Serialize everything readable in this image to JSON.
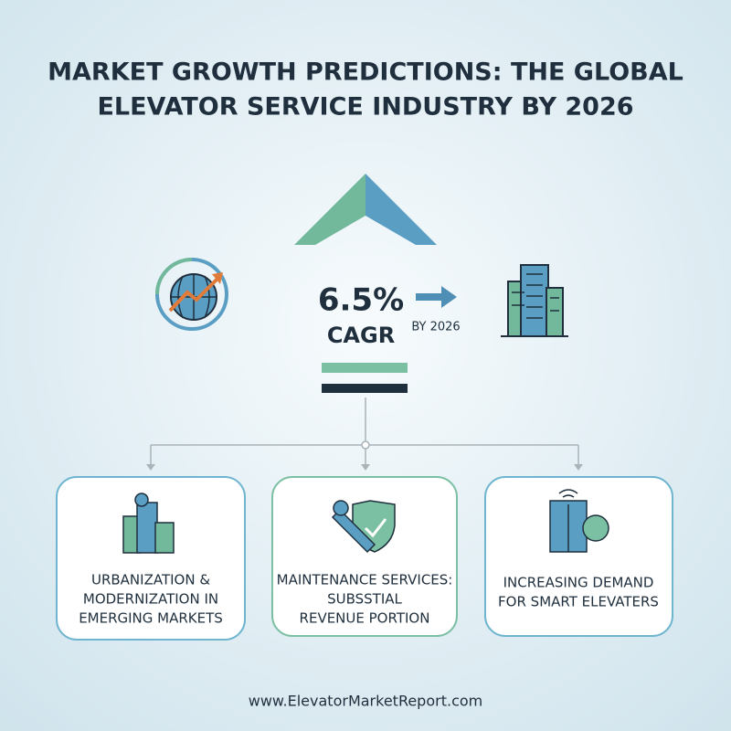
{
  "header": {
    "title_lines": [
      "MARKET GROWTH PREDICTIONS: THE GLOBAL",
      "ELEVATOR SERVICE INDUSTRY BY 2026"
    ]
  },
  "center": {
    "rate": "6.5%",
    "rate_label": "CAGR",
    "horizon": "BY 2026"
  },
  "cards": [
    {
      "lines": [
        "URBANIZATION &",
        "MODERNIZATION IN",
        "EMERGING MARKETS"
      ]
    },
    {
      "lines": [
        "MAINTENANCE SERVICES:",
        "SUBSSTIAL",
        "REVENUE PORTION"
      ]
    },
    {
      "lines": [
        "INCREASING DEMAND",
        "FOR SMART ELEVATERS"
      ]
    }
  ],
  "footer": {
    "url": "www.ElevatorMarketReport.com"
  }
}
